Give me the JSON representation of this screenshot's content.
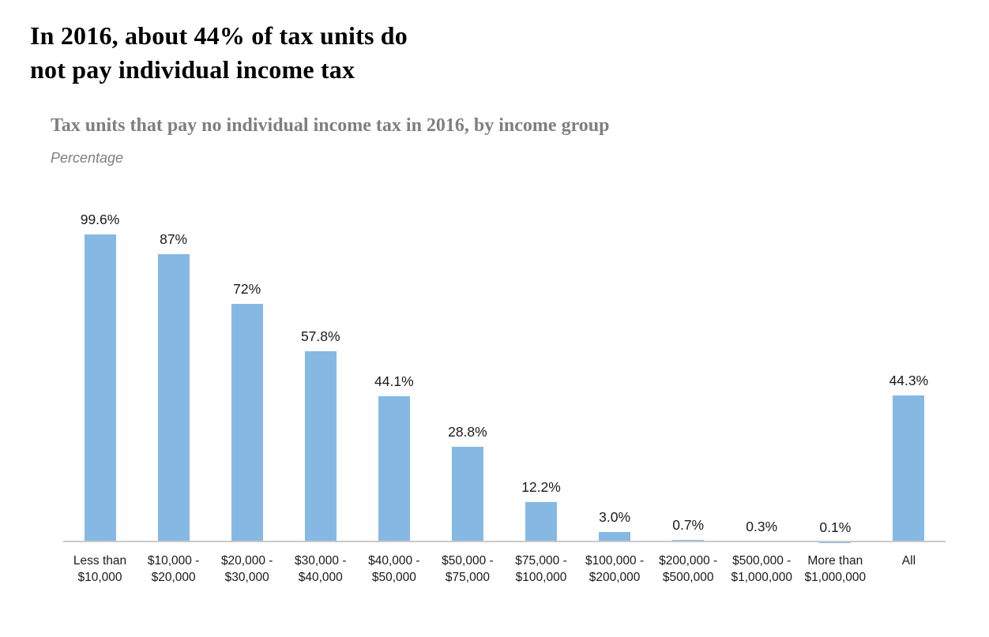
{
  "title": "In 2016, about 44% of tax units do\nnot pay individual income tax",
  "subtitle": "Tax units that pay no individual income tax in 2016, by income group",
  "unit_label": "Percentage",
  "colors": {
    "bar": "#85B9E4",
    "axis_line": "#C9C9C9",
    "title": "#000000",
    "subtitle": "#7F7F7F",
    "labels": "#1A1A1A"
  },
  "chart_data": {
    "type": "bar",
    "title": "Tax units that pay no individual income tax in 2016, by income group",
    "xlabel": "",
    "ylabel": "Percentage",
    "ylim": [
      0,
      100
    ],
    "grid": false,
    "legend": false,
    "categories": [
      "Less than\n$10,000",
      "$10,000 -\n$20,000",
      "$20,000 -\n$30,000",
      "$30,000 -\n$40,000",
      "$40,000 -\n$50,000",
      "$50,000 -\n$75,000",
      "$75,000 -\n$100,000",
      "$100,000 -\n$200,000",
      "$200,000 -\n$500,000",
      "$500,000 -\n$1,000,000",
      "More than\n$1,000,000",
      "All"
    ],
    "values": [
      99.6,
      87,
      72,
      57.8,
      44.1,
      28.8,
      12.2,
      3.0,
      0.7,
      0.3,
      0.1,
      44.3
    ],
    "value_labels": [
      "99.6%",
      "87%",
      "72%",
      "57.8%",
      "44.1%",
      "28.8%",
      "12.2%",
      "3.0%",
      "0.7%",
      "0.3%",
      "0.1%",
      "44.3%"
    ]
  }
}
